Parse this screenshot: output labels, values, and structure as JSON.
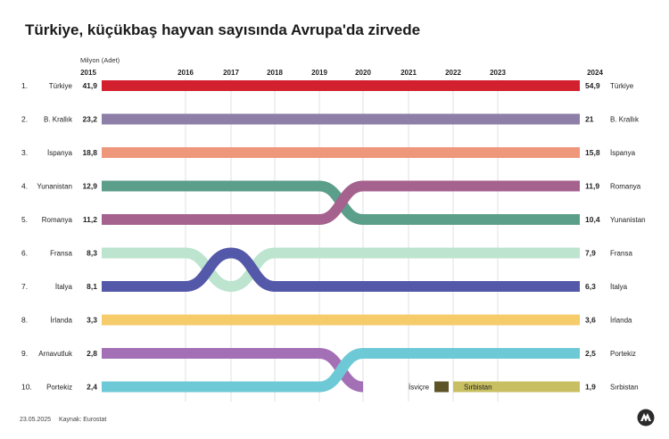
{
  "title": "Türkiye, küçükbaş hayvan sayısında Avrupa'da zirvede",
  "unit_label": "Milyon (Adet)",
  "footer": {
    "date": "23.05.2025",
    "source": "Kaynak: Eurostat"
  },
  "logo_icon": "aa-logo-icon",
  "chart_data": {
    "type": "bump",
    "ylabel": "Milyon (Adet)",
    "x": [
      "2015",
      "2016",
      "2017",
      "2018",
      "2019",
      "2020",
      "2021",
      "2022",
      "2023",
      "2024"
    ],
    "ranks_2015": [
      "1.",
      "2.",
      "3.",
      "4.",
      "5.",
      "6.",
      "7.",
      "8.",
      "9.",
      "10."
    ],
    "series": [
      {
        "name": "Türkiye",
        "color": "#d3202e",
        "value_2015": "41,9",
        "value_2024": "54,9",
        "ranks": [
          1,
          1,
          1,
          1,
          1,
          1,
          1,
          1,
          1,
          1
        ]
      },
      {
        "name": "B. Krallık",
        "color": "#8e7fa8",
        "value_2015": "23,2",
        "value_2024": "21",
        "ranks": [
          2,
          2,
          2,
          2,
          2,
          2,
          2,
          2,
          2,
          2
        ]
      },
      {
        "name": "İspanya",
        "color": "#ee977a",
        "value_2015": "18,8",
        "value_2024": "15,8",
        "ranks": [
          3,
          3,
          3,
          3,
          3,
          3,
          3,
          3,
          3,
          3
        ]
      },
      {
        "name": "Yunanistan",
        "color": "#5b9e8a",
        "value_2015": "12,9",
        "value_2024": "10,4",
        "ranks": [
          4,
          4,
          4,
          4,
          4,
          5,
          5,
          5,
          5,
          5
        ]
      },
      {
        "name": "Romanya",
        "color": "#a5628f",
        "value_2015": "11,2",
        "value_2024": "11,9",
        "ranks": [
          5,
          5,
          5,
          5,
          5,
          4,
          4,
          4,
          4,
          4
        ]
      },
      {
        "name": "Fransa",
        "color": "#bce4cf",
        "value_2015": "8,3",
        "value_2024": "7,9",
        "ranks": [
          6,
          6,
          7,
          6,
          6,
          6,
          6,
          6,
          6,
          6
        ]
      },
      {
        "name": "İtalya",
        "color": "#5458a8",
        "value_2015": "8,1",
        "value_2024": "6,3",
        "ranks": [
          7,
          7,
          6,
          7,
          7,
          7,
          7,
          7,
          7,
          7
        ]
      },
      {
        "name": "İrlanda",
        "color": "#f6cb6a",
        "value_2015": "3,3",
        "value_2024": "3,6",
        "ranks": [
          8,
          8,
          8,
          8,
          8,
          8,
          8,
          8,
          8,
          8
        ]
      },
      {
        "name": "Arnavutluk",
        "color": "#a470b5",
        "value_2015": "2,8",
        "value_2024": "",
        "ranks": [
          9,
          9,
          9,
          9,
          9,
          10,
          null,
          null,
          null,
          null
        ]
      },
      {
        "name": "Portekiz",
        "color": "#6ec9d6",
        "value_2015": "2,4",
        "value_2024": "2,5",
        "ranks": [
          10,
          10,
          10,
          10,
          10,
          9,
          9,
          9,
          9,
          9
        ]
      },
      {
        "name": "İsviçre",
        "color": "#5c5427",
        "value_2015": "",
        "value_2024": "",
        "ranks": [
          null,
          null,
          null,
          null,
          null,
          null,
          10,
          null,
          null,
          null
        ]
      },
      {
        "name": "Sırbistan",
        "color": "#c8bf62",
        "value_2015": "",
        "value_2024": "1,9",
        "ranks": [
          null,
          null,
          null,
          null,
          null,
          null,
          null,
          10,
          10,
          10
        ]
      }
    ],
    "legend": "inline labels at both ends",
    "grid": true
  }
}
